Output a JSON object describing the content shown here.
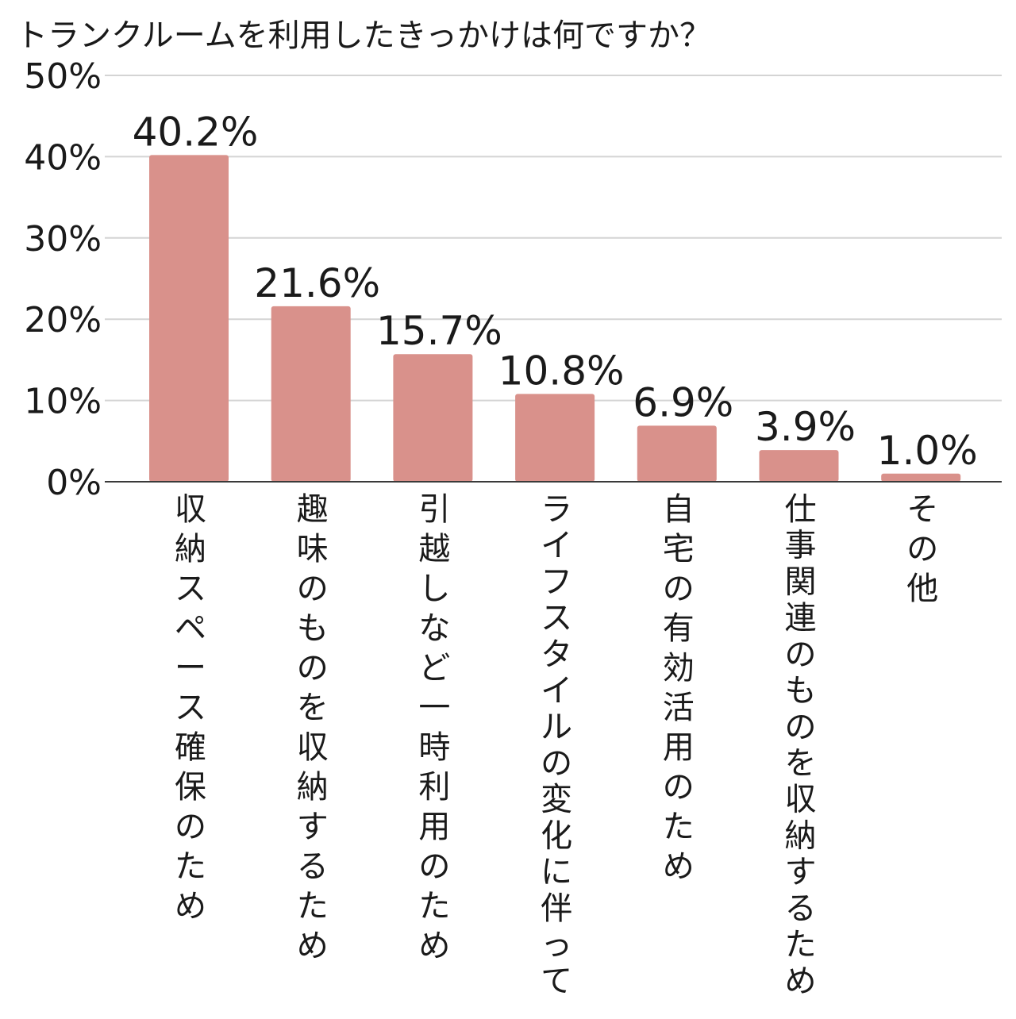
{
  "chart_data": {
    "type": "bar",
    "title": "トランクルームを利用したきっかけは何ですか？",
    "xlabel": "",
    "ylabel": "",
    "ylim": [
      0,
      50
    ],
    "y_ticks": [
      0,
      10,
      20,
      30,
      40,
      50
    ],
    "y_tick_labels": [
      "0%",
      "10%",
      "20%",
      "30%",
      "40%",
      "50%"
    ],
    "grid": true,
    "legend": "none",
    "bar_color": "#d9918b",
    "categories": [
      "収納スペース確保のため",
      "趣味のものを収納するため",
      "引越しなど一時利用のため",
      "ライフスタイルの変化に伴って",
      "自宅の有効活用のため",
      "仕事関連のものを収納するため",
      "その他"
    ],
    "values": [
      40.2,
      21.6,
      15.7,
      10.8,
      6.9,
      3.9,
      1.0
    ],
    "data_labels": [
      "40.2%",
      "21.6%",
      "15.7%",
      "10.8%",
      "6.9%",
      "3.9%",
      "1.0%"
    ]
  }
}
